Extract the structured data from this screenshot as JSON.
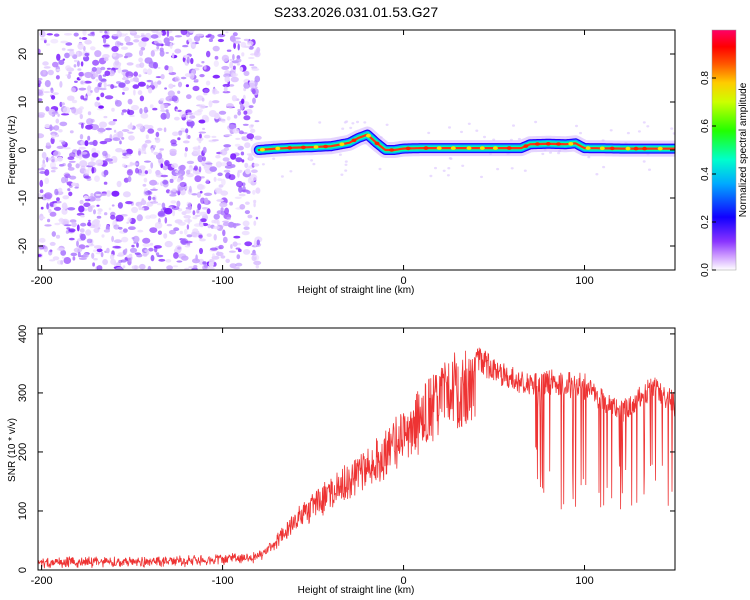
{
  "title": "S233.2026.031.01.53.G27",
  "spectrogram": {
    "chart_data": {
      "type": "heatmap",
      "xlabel": "Height of straight line (km)",
      "ylabel": "Frequency (Hz)",
      "xlim": [
        -202,
        150
      ],
      "ylim": [
        -25,
        25
      ],
      "xticks": [
        -200,
        -100,
        0,
        100
      ],
      "yticks": [
        -20,
        -10,
        0,
        10,
        20
      ],
      "noise_region_km": [
        -202,
        -80
      ],
      "signal_start_km": -80,
      "frequency_track": {
        "x": [
          -80,
          -70,
          -60,
          -50,
          -40,
          -30,
          -25,
          -20,
          -15,
          -10,
          -5,
          0,
          10,
          30,
          65,
          70,
          80,
          90,
          95,
          100,
          120,
          150
        ],
        "y": [
          0,
          0.3,
          0.5,
          0.6,
          0.8,
          1.5,
          2.5,
          3.2,
          1.5,
          0,
          0,
          0.3,
          0.4,
          0.4,
          0.4,
          1.2,
          1.3,
          1.2,
          1.4,
          0.4,
          0.3,
          0.3
        ]
      },
      "colorbar": {
        "label": "Normalized spectral amplitude",
        "range": [
          0,
          1
        ],
        "ticks": [
          "0.0",
          "0.2",
          "0.4",
          "0.6",
          "0.8"
        ]
      }
    }
  },
  "snr": {
    "chart_data": {
      "type": "line",
      "xlabel": "Height of straight line (km)",
      "ylabel": "SNR (10 * v/v)",
      "xlim": [
        -202,
        150
      ],
      "ylim": [
        0,
        410
      ],
      "xticks": [
        -200,
        -100,
        0,
        100
      ],
      "yticks": [
        0,
        100,
        200,
        300,
        400
      ],
      "color": "#ee3333",
      "envelope": {
        "x": [
          -202,
          -120,
          -80,
          -70,
          -60,
          -50,
          -40,
          -30,
          -20,
          -10,
          0,
          10,
          20,
          30,
          40,
          50,
          60,
          70,
          80,
          90,
          100,
          110,
          120,
          130,
          140,
          150
        ],
        "y": [
          20,
          22,
          28,
          60,
          100,
          130,
          160,
          185,
          210,
          240,
          275,
          310,
          345,
          370,
          380,
          360,
          345,
          335,
          340,
          335,
          330,
          310,
          290,
          310,
          330,
          300
        ]
      },
      "dropouts": [
        {
          "x_range": [
            73,
            78
          ],
          "min": 130
        },
        {
          "x_range": [
            80,
            150
          ],
          "min": 100
        }
      ]
    }
  }
}
